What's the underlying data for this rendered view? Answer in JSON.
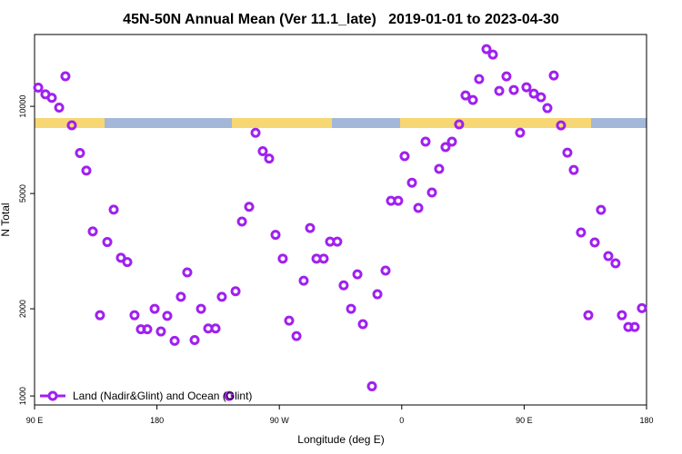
{
  "chart_data": {
    "type": "scatter",
    "title": "45N-50N Annual Mean (Ver 11.1_late)   2019-01-01 to 2023-04-30",
    "xlabel": "Longitude (deg E)",
    "ylabel": "N Total",
    "legend": "bottom-left",
    "ylog": true,
    "xlim": [
      90,
      540
    ],
    "ylim": [
      931,
      17700
    ],
    "xticks": [
      {
        "value": 90,
        "label": "90 E"
      },
      180,
      {
        "value": 270,
        "label": "90 W"
      },
      {
        "value": 360,
        "label": "0"
      },
      {
        "value": 450,
        "label": "90 E"
      },
      {
        "value": 540,
        "label": "180"
      }
    ],
    "yticks": [
      1000,
      2000,
      5000,
      10000
    ],
    "series": [
      {
        "name": "Land (Nadir&Glint) and Ocean (Glint)",
        "color": "#a020f0",
        "x": [
          92.7,
          98.0,
          102.7,
          108.1,
          112.7,
          117.4,
          123.4,
          128.1,
          132.8,
          138.1,
          143.5,
          148.2,
          153.5,
          158.2,
          163.5,
          168.2,
          172.9,
          178.3,
          182.9,
          187.6,
          193.0,
          197.6,
          202.3,
          207.7,
          212.4,
          217.7,
          223.1,
          227.7,
          233.1,
          237.8,
          242.5,
          247.8,
          252.5,
          257.8,
          262.5,
          267.2,
          272.5,
          277.2,
          282.6,
          287.9,
          292.6,
          297.3,
          302.6,
          307.3,
          312.6,
          317.3,
          322.7,
          327.4,
          331.4,
          338.1,
          342.1,
          348.1,
          352.1,
          357.4,
          362.1,
          367.5,
          372.2,
          377.5,
          382.2,
          387.5,
          392.2,
          396.9,
          402.2,
          406.9,
          412.3,
          416.9,
          422.3,
          427.0,
          431.7,
          437.0,
          442.4,
          447.0,
          451.7,
          457.1,
          462.4,
          467.1,
          471.8,
          477.1,
          481.8,
          486.5,
          491.8,
          497.2,
          501.9,
          506.5,
          511.9,
          517.2,
          521.9,
          526.6,
          531.3,
          536.6
        ],
        "values": [
          11600,
          11000,
          10700,
          9900,
          12700,
          8600,
          6900,
          6000,
          3700,
          1900,
          3400,
          4400,
          3000,
          2900,
          1900,
          1700,
          1700,
          2000,
          1670,
          1890,
          1550,
          2200,
          2670,
          1560,
          2000,
          1710,
          1710,
          2200,
          1000,
          2300,
          4000,
          4500,
          8100,
          7000,
          6600,
          3600,
          2980,
          1820,
          1610,
          2500,
          3800,
          2980,
          2980,
          3410,
          3410,
          2410,
          2000,
          2630,
          1770,
          1080,
          2245,
          2710,
          4720,
          4720,
          6730,
          5450,
          4460,
          7550,
          5040,
          6080,
          7230,
          7550,
          8660,
          10900,
          10520,
          12420,
          15760,
          15090,
          11300,
          12690,
          11390,
          8110,
          11640,
          11060,
          10750,
          9860,
          12780,
          8590,
          6920,
          6030,
          3670,
          1900,
          3390,
          4390,
          3040,
          2870,
          1900,
          1730,
          1730,
          2010
        ]
      }
    ]
  }
}
